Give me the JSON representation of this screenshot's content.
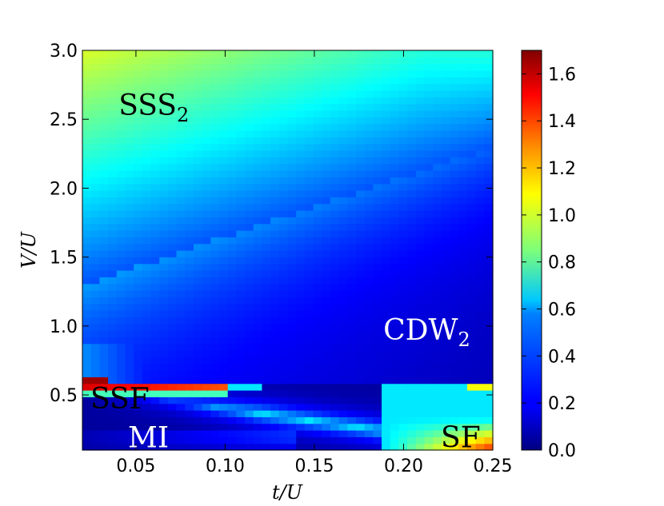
{
  "chart_data": {
    "type": "heatmap",
    "title": "",
    "xlabel": "t/U",
    "ylabel": "V/U",
    "xlim": [
      0.02,
      0.25
    ],
    "ylim": [
      0.1,
      3.0
    ],
    "xticks": [
      0.05,
      0.1,
      0.15,
      0.2,
      0.25
    ],
    "xtick_labels": [
      "0.05",
      "0.10",
      "0.15",
      "0.20",
      "0.25"
    ],
    "yticks": [
      0.5,
      1.0,
      1.5,
      2.0,
      2.5,
      3.0
    ],
    "ytick_labels": [
      "0.5",
      "1.0",
      "1.5",
      "2.0",
      "2.5",
      "3.0"
    ],
    "grid": {
      "nx": 48,
      "ny": 60
    },
    "colorbar": {
      "range": [
        0.0,
        1.7
      ],
      "ticks": [
        0.0,
        0.2,
        0.4,
        0.6,
        0.8,
        1.0,
        1.2,
        1.4,
        1.6
      ],
      "tick_labels": [
        "0.0",
        "0.2",
        "0.4",
        "0.6",
        "0.8",
        "1.0",
        "1.2",
        "1.4",
        "1.6"
      ],
      "colormap": "jet"
    },
    "regions": [
      {
        "name": "SSS",
        "sub": "2",
        "t": 0.06,
        "V": 2.6,
        "light": false
      },
      {
        "name": "CDW",
        "sub": "2",
        "t": 0.213,
        "V": 0.97,
        "light": true
      },
      {
        "name": "SSF",
        "sub": "",
        "t": 0.041,
        "V": 0.47,
        "light": false
      },
      {
        "name": "MI",
        "sub": "",
        "t": 0.057,
        "V": 0.19,
        "light": true
      },
      {
        "name": "SF",
        "sub": "",
        "t": 0.232,
        "V": 0.19,
        "light": false
      }
    ]
  }
}
